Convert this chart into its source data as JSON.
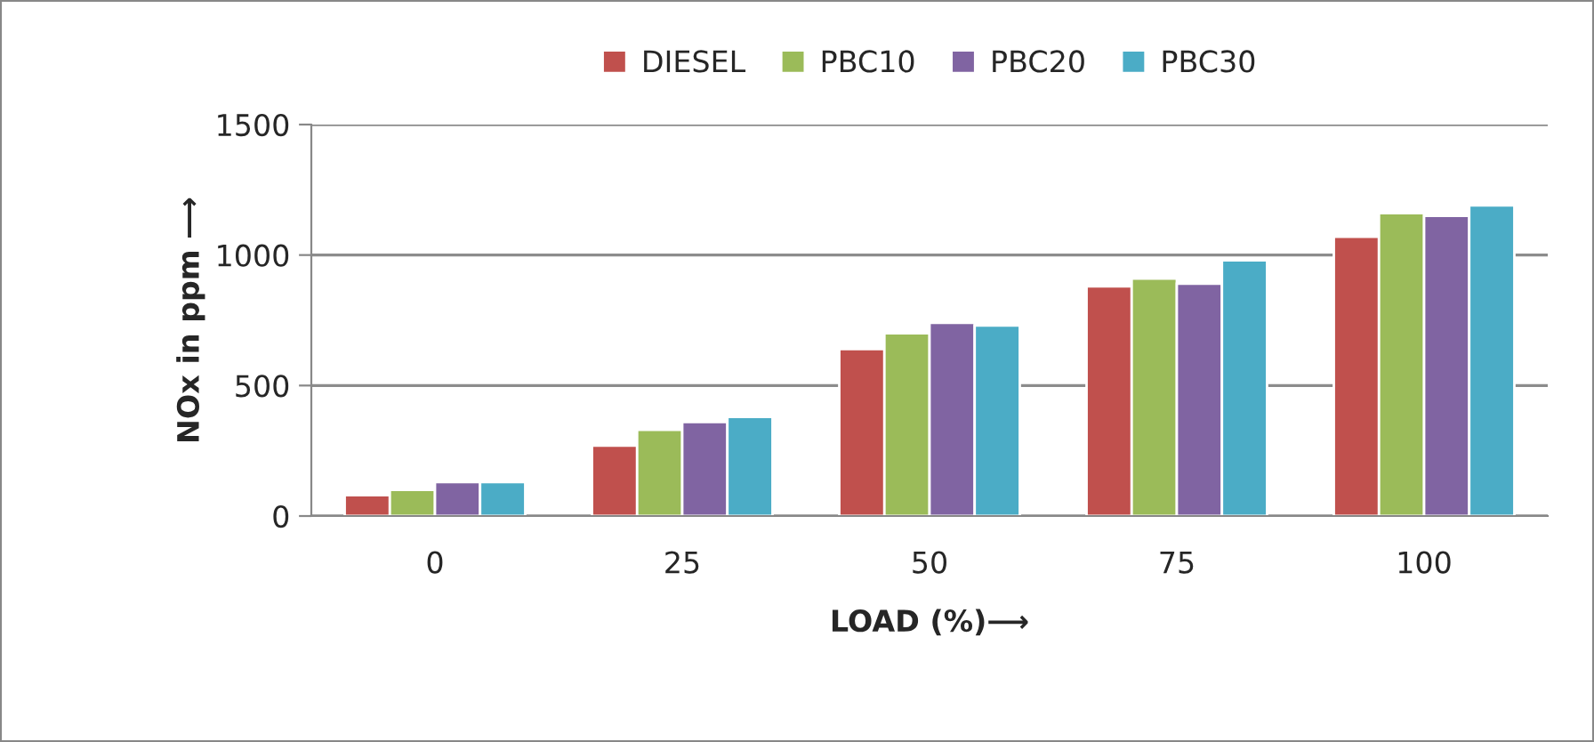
{
  "chart_data": {
    "type": "bar",
    "xlabel": "LOAD (%)⟶",
    "ylabel": "NOx in ppm ⟶",
    "categories": [
      "0",
      "25",
      "50",
      "75",
      "100"
    ],
    "series": [
      {
        "name": "DIESEL",
        "color": "#c0504d",
        "values": [
          80,
          270,
          640,
          880,
          1070
        ]
      },
      {
        "name": "PBC10",
        "color": "#9bbb59",
        "values": [
          100,
          330,
          700,
          910,
          1160
        ]
      },
      {
        "name": "PBC20",
        "color": "#8064a2",
        "values": [
          130,
          360,
          740,
          890,
          1150
        ]
      },
      {
        "name": "PBC30",
        "color": "#4bacc6",
        "values": [
          130,
          380,
          730,
          980,
          1190
        ]
      }
    ],
    "ylim": [
      0,
      1500
    ],
    "yticks": [
      0,
      500,
      1000,
      1500
    ],
    "grid": "y",
    "legend": "top"
  }
}
